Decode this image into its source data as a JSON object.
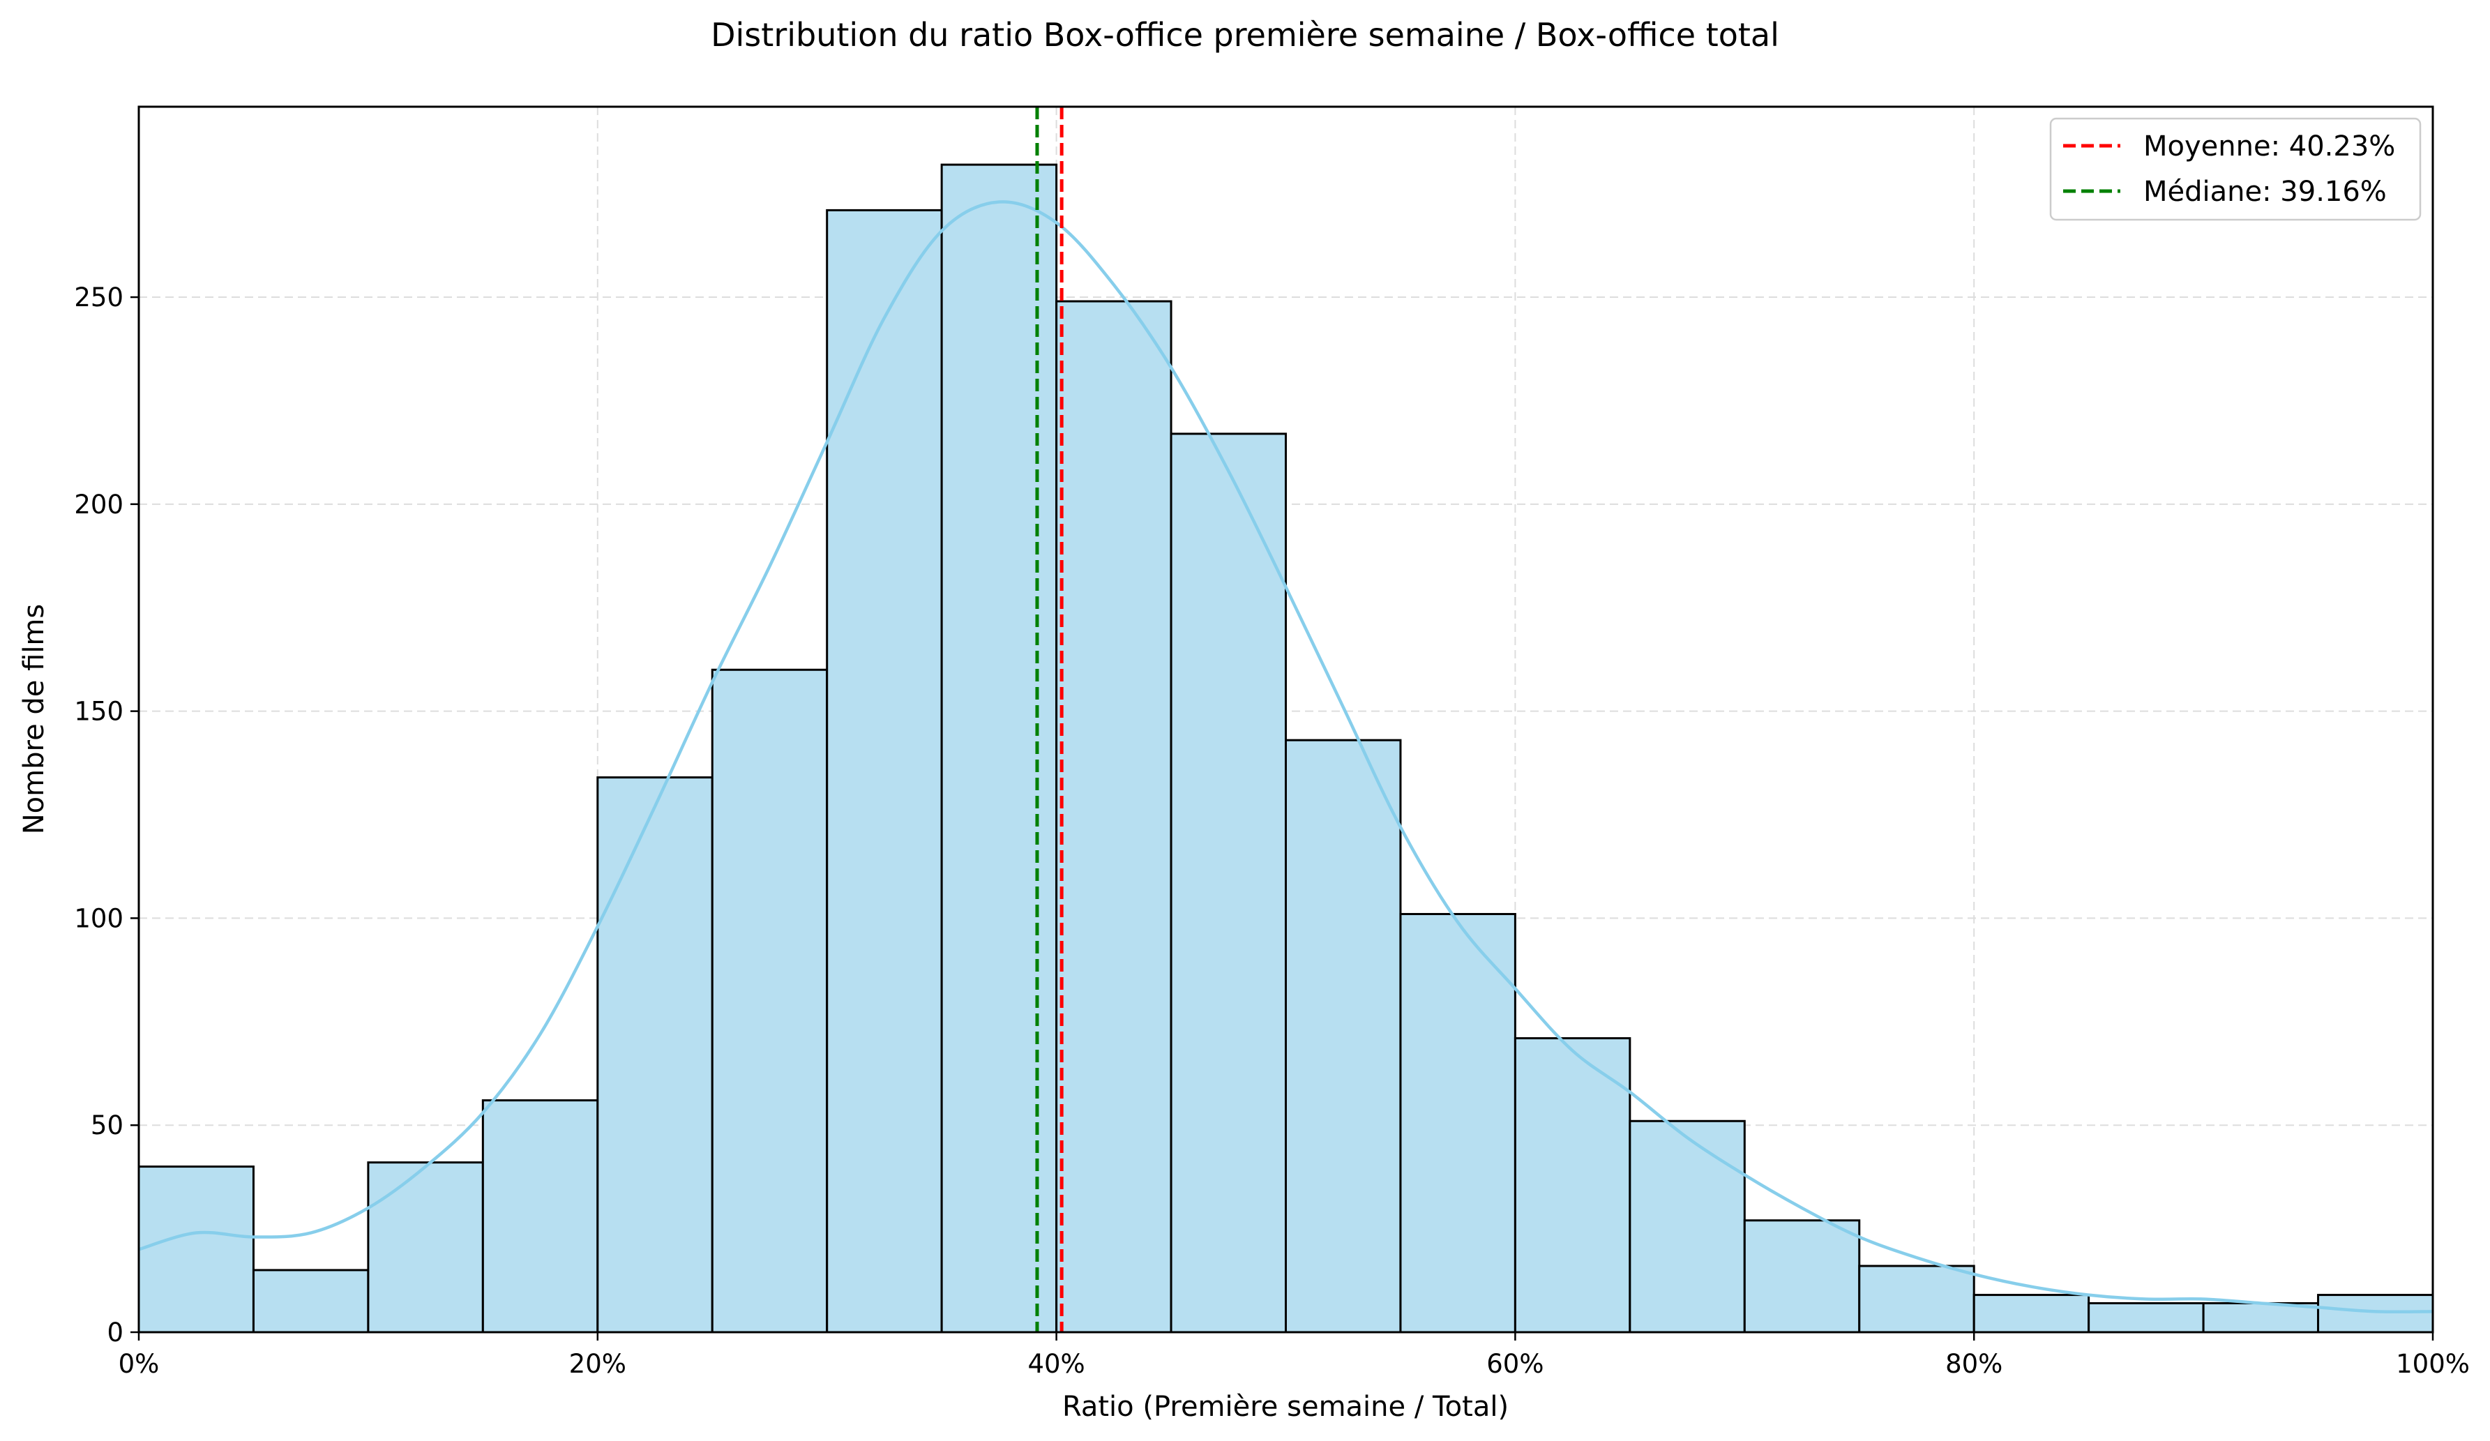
{
  "chart_data": {
    "type": "bar",
    "title": "Distribution du ratio Box-office première semaine / Box-office total",
    "xlabel": "Ratio (Première semaine / Total)",
    "ylabel": "Nombre de films",
    "xlim": [
      0,
      1
    ],
    "ylim": [
      0,
      296
    ],
    "grid": true,
    "legend_position": "top-right",
    "bin_edges": [
      0,
      0.05,
      0.1,
      0.15,
      0.2,
      0.25,
      0.3,
      0.35,
      0.4,
      0.45,
      0.5,
      0.55,
      0.6,
      0.65,
      0.7,
      0.75,
      0.8,
      0.85,
      0.9,
      0.95,
      1.0
    ],
    "counts": [
      40,
      15,
      41,
      56,
      134,
      160,
      271,
      282,
      249,
      217,
      143,
      101,
      71,
      51,
      27,
      16,
      9,
      7,
      7,
      9
    ],
    "kde": {
      "x": [
        0,
        0.025,
        0.05,
        0.075,
        0.1,
        0.125,
        0.15,
        0.175,
        0.2,
        0.225,
        0.25,
        0.275,
        0.3,
        0.325,
        0.35,
        0.375,
        0.4,
        0.425,
        0.45,
        0.475,
        0.5,
        0.525,
        0.55,
        0.575,
        0.6,
        0.625,
        0.65,
        0.675,
        0.7,
        0.725,
        0.75,
        0.775,
        0.8,
        0.825,
        0.85,
        0.875,
        0.9,
        0.925,
        0.95,
        0.975,
        1.0
      ],
      "y": [
        20,
        24,
        23,
        24,
        30,
        40,
        53,
        72,
        98,
        127,
        157,
        185,
        215,
        245,
        266,
        273,
        268,
        253,
        233,
        208,
        180,
        151,
        122,
        99,
        83,
        68,
        58,
        47,
        38,
        30,
        23,
        18,
        14,
        11,
        9,
        8,
        8,
        7,
        6,
        5,
        5
      ]
    },
    "x_ticks": [
      {
        "value": 0,
        "label": "0%"
      },
      {
        "value": 0.2,
        "label": "20%"
      },
      {
        "value": 0.4,
        "label": "40%"
      },
      {
        "value": 0.6,
        "label": "60%"
      },
      {
        "value": 0.8,
        "label": "80%"
      },
      {
        "value": 1.0,
        "label": "100%"
      }
    ],
    "y_ticks": [
      {
        "value": 0,
        "label": "0"
      },
      {
        "value": 50,
        "label": "50"
      },
      {
        "value": 100,
        "label": "100"
      },
      {
        "value": 150,
        "label": "150"
      },
      {
        "value": 200,
        "label": "200"
      },
      {
        "value": 250,
        "label": "250"
      }
    ],
    "reference_lines": [
      {
        "name": "Moyenne: 40.23%",
        "value": 0.4023,
        "color": "#ff0000"
      },
      {
        "name": "Médiane: 39.16%",
        "value": 0.3916,
        "color": "#008000"
      }
    ],
    "colors": {
      "bar_fill": "#b7dff1",
      "bar_stroke": "#000000",
      "kde_line": "#87ceeb",
      "grid": "#dddddd"
    }
  }
}
